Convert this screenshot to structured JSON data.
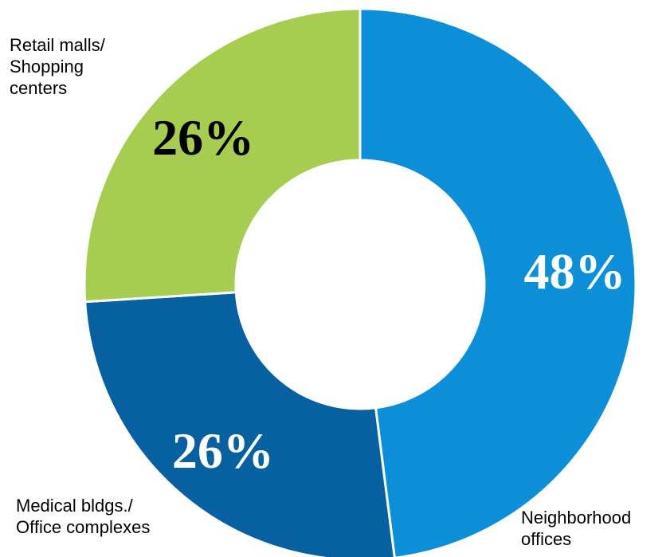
{
  "chart_data": {
    "type": "pie",
    "donut": true,
    "title": "",
    "slices": [
      {
        "category": "Neighborhood offices",
        "category_lines": [
          "Neighborhood",
          "offices"
        ],
        "value": 48,
        "value_label": "48%",
        "color": "#0a8fd8",
        "label_color": "#ffffff"
      },
      {
        "category": "Medical bldgs./ Office complexes",
        "category_lines": [
          "Medical bldgs./",
          "Office complexes"
        ],
        "value": 26,
        "value_label": "26%",
        "color": "#07609f",
        "label_color": "#ffffff"
      },
      {
        "category": "Retail malls/ Shopping centers",
        "category_lines": [
          "Retail malls/",
          "Shopping",
          "centers"
        ],
        "value": 26,
        "value_label": "26%",
        "color": "#a6cd4f",
        "label_color": "#000000"
      }
    ],
    "start": "12 o'clock",
    "direction": "clockwise",
    "legend": "none"
  }
}
